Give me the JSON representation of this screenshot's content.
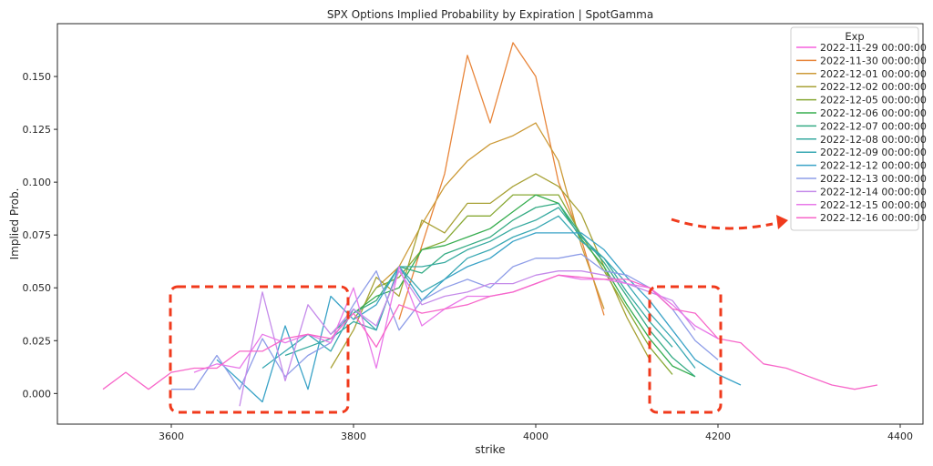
{
  "chart_data": {
    "type": "line",
    "title": "SPX Options Implied Probability by Expiration | SpotGamma",
    "xlabel": "strike",
    "ylabel": "Implied Prob.",
    "xlim": [
      3475,
      4425
    ],
    "ylim": [
      -0.0145,
      0.175
    ],
    "xticks": [
      3600,
      3800,
      4000,
      4200,
      4400
    ],
    "xtick_labels": [
      "3600",
      "3800",
      "4000",
      "4200",
      "4400"
    ],
    "yticks": [
      0.0,
      0.025,
      0.05,
      0.075,
      0.1,
      0.125,
      0.15
    ],
    "ytick_labels": [
      "0.000",
      "0.025",
      "0.050",
      "0.075",
      "0.100",
      "0.125",
      "0.150"
    ],
    "grid": false,
    "legend": {
      "title": "Exp",
      "placement": "top-right"
    },
    "series": [
      {
        "name": "2022-11-29 00:00:00",
        "color": "#f561dd",
        "x": [],
        "y": []
      },
      {
        "name": "2022-11-30 00:00:00",
        "color": "#e8853a",
        "x": [
          3850,
          3875,
          3900,
          3925,
          3950,
          3975,
          4000,
          4025,
          4050,
          4075
        ],
        "y": [
          0.035,
          0.07,
          0.104,
          0.16,
          0.128,
          0.166,
          0.15,
          0.1,
          0.073,
          0.037
        ]
      },
      {
        "name": "2022-12-01 00:00:00",
        "color": "#cc9a37",
        "x": [
          3825,
          3850,
          3875,
          3900,
          3925,
          3950,
          3975,
          4000,
          4025,
          4050,
          4075
        ],
        "y": [
          0.05,
          0.06,
          0.08,
          0.098,
          0.11,
          0.118,
          0.122,
          0.128,
          0.11,
          0.07,
          0.04
        ]
      },
      {
        "name": "2022-12-02 00:00:00",
        "color": "#a8a236",
        "x": [
          3775,
          3800,
          3825,
          3850,
          3875,
          3900,
          3925,
          3950,
          3975,
          4000,
          4025,
          4050,
          4075,
          4100,
          4125
        ],
        "y": [
          0.012,
          0.03,
          0.055,
          0.046,
          0.082,
          0.076,
          0.09,
          0.09,
          0.098,
          0.104,
          0.098,
          0.085,
          0.06,
          0.036,
          0.016
        ]
      },
      {
        "name": "2022-12-05 00:00:00",
        "color": "#88a935",
        "x": [
          3800,
          3825,
          3850,
          3875,
          3900,
          3925,
          3950,
          3975,
          4000,
          4025,
          4050,
          4075,
          4100,
          4125,
          4150
        ],
        "y": [
          0.035,
          0.05,
          0.055,
          0.068,
          0.072,
          0.084,
          0.084,
          0.094,
          0.094,
          0.094,
          0.075,
          0.058,
          0.04,
          0.022,
          0.009
        ]
      },
      {
        "name": "2022-12-06 00:00:00",
        "color": "#36ad4f",
        "x": [
          3800,
          3825,
          3850,
          3875,
          3900,
          3925,
          3950,
          3975,
          4000,
          4025,
          4050,
          4075,
          4100,
          4125,
          4150,
          4175
        ],
        "y": [
          0.038,
          0.046,
          0.05,
          0.068,
          0.07,
          0.074,
          0.078,
          0.086,
          0.094,
          0.09,
          0.073,
          0.06,
          0.042,
          0.026,
          0.013,
          0.008
        ]
      },
      {
        "name": "2022-12-07 00:00:00",
        "color": "#35ab84",
        "x": [
          3775,
          3800,
          3825,
          3850,
          3875,
          3900,
          3925,
          3950,
          3975,
          4000,
          4025,
          4050,
          4075,
          4100,
          4125,
          4150,
          4175
        ],
        "y": [
          0.028,
          0.038,
          0.044,
          0.06,
          0.057,
          0.066,
          0.07,
          0.074,
          0.082,
          0.088,
          0.09,
          0.075,
          0.062,
          0.046,
          0.03,
          0.017,
          0.008
        ]
      },
      {
        "name": "2022-12-08 00:00:00",
        "color": "#37aaa0",
        "x": [
          3725,
          3750,
          3775,
          3800,
          3825,
          3850,
          3875,
          3900,
          3925,
          3950,
          3975,
          4000,
          4025,
          4050,
          4075,
          4100,
          4125,
          4150
        ],
        "y": [
          0.018,
          0.022,
          0.026,
          0.034,
          0.03,
          0.06,
          0.06,
          0.062,
          0.068,
          0.072,
          0.078,
          0.082,
          0.088,
          0.074,
          0.064,
          0.048,
          0.034,
          0.022
        ]
      },
      {
        "name": "2022-12-09 00:00:00",
        "color": "#39a8b3",
        "x": [
          3700,
          3725,
          3750,
          3775,
          3800,
          3825,
          3850,
          3875,
          3900,
          3925,
          3950,
          3975,
          4000,
          4025,
          4050,
          4075,
          4100,
          4125,
          4150,
          4175
        ],
        "y": [
          0.012,
          0.02,
          0.028,
          0.02,
          0.04,
          0.03,
          0.06,
          0.048,
          0.054,
          0.064,
          0.068,
          0.074,
          0.078,
          0.084,
          0.072,
          0.064,
          0.052,
          0.038,
          0.026,
          0.012
        ]
      },
      {
        "name": "2022-12-12 00:00:00",
        "color": "#3aa3c7",
        "x": [
          3650,
          3675,
          3700,
          3725,
          3750,
          3775,
          3800,
          3825,
          3850,
          3875,
          3900,
          3925,
          3950,
          3975,
          4000,
          4025,
          4050,
          4075,
          4100,
          4125,
          4150,
          4175,
          4200,
          4225
        ],
        "y": [
          0.016,
          0.006,
          -0.004,
          0.032,
          0.002,
          0.046,
          0.035,
          0.042,
          0.06,
          0.044,
          0.054,
          0.06,
          0.064,
          0.072,
          0.076,
          0.076,
          0.076,
          0.068,
          0.055,
          0.044,
          0.03,
          0.016,
          0.009,
          0.004
        ]
      },
      {
        "name": "2022-12-13 00:00:00",
        "color": "#8e9de8",
        "x": [
          3600,
          3625,
          3650,
          3675,
          3700,
          3725,
          3750,
          3775,
          3800,
          3825,
          3850,
          3875,
          3900,
          3925,
          3950,
          3975,
          4000,
          4025,
          4050,
          4075,
          4100,
          4125,
          4150,
          4175,
          4200
        ],
        "y": [
          0.002,
          0.002,
          0.018,
          0.002,
          0.026,
          0.008,
          0.018,
          0.024,
          0.042,
          0.058,
          0.03,
          0.044,
          0.05,
          0.054,
          0.05,
          0.06,
          0.064,
          0.064,
          0.066,
          0.058,
          0.056,
          0.05,
          0.04,
          0.025,
          0.016
        ]
      },
      {
        "name": "2022-12-14 00:00:00",
        "color": "#c58bea",
        "x": [
          3675,
          3700,
          3725,
          3750,
          3775,
          3800,
          3825,
          3850,
          3875,
          3900,
          3925,
          3950,
          3975,
          4000,
          4025,
          4050,
          4075,
          4100,
          4125,
          4150,
          4175
        ],
        "y": [
          -0.006,
          0.048,
          0.006,
          0.042,
          0.028,
          0.04,
          0.032,
          0.058,
          0.042,
          0.046,
          0.048,
          0.052,
          0.052,
          0.056,
          0.058,
          0.058,
          0.056,
          0.052,
          0.048,
          0.044,
          0.03
        ]
      },
      {
        "name": "2022-12-15 00:00:00",
        "color": "#e879e9",
        "x": [
          3625,
          3650,
          3675,
          3700,
          3725,
          3750,
          3775,
          3800,
          3825,
          3850,
          3875,
          3900,
          3925,
          3950,
          3975,
          4000,
          4025,
          4050,
          4075,
          4100,
          4125,
          4150,
          4175,
          4200
        ],
        "y": [
          0.01,
          0.014,
          0.012,
          0.028,
          0.024,
          0.028,
          0.024,
          0.05,
          0.012,
          0.06,
          0.032,
          0.04,
          0.046,
          0.046,
          0.048,
          0.052,
          0.056,
          0.054,
          0.054,
          0.052,
          0.05,
          0.042,
          0.032,
          0.026
        ]
      },
      {
        "name": "2022-12-16 00:00:00",
        "color": "#f766c9",
        "x": [
          3525,
          3550,
          3575,
          3600,
          3625,
          3650,
          3675,
          3700,
          3725,
          3750,
          3775,
          3800,
          3825,
          3850,
          3875,
          3900,
          3925,
          3950,
          3975,
          4000,
          4025,
          4050,
          4075,
          4100,
          4125,
          4150,
          4175,
          4200,
          4225,
          4250,
          4275,
          4300,
          4325,
          4350,
          4375
        ],
        "y": [
          0.002,
          0.01,
          0.002,
          0.01,
          0.012,
          0.012,
          0.02,
          0.02,
          0.026,
          0.028,
          0.026,
          0.038,
          0.022,
          0.042,
          0.038,
          0.04,
          0.042,
          0.046,
          0.048,
          0.052,
          0.056,
          0.055,
          0.054,
          0.054,
          0.05,
          0.04,
          0.038,
          0.026,
          0.024,
          0.014,
          0.012,
          0.008,
          0.004,
          0.002,
          0.004
        ]
      }
    ]
  }
}
